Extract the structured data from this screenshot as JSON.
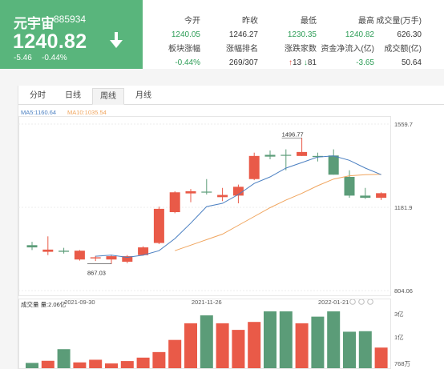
{
  "quote": {
    "name": "元宇宙",
    "code": "885934",
    "price": "1240.82",
    "change": "-5.46",
    "change_pct": "-0.44%",
    "direction_icon": "down-arrow-icon"
  },
  "stats": [
    {
      "label": "今开",
      "value": "1240.05",
      "tone": "down"
    },
    {
      "label": "昨收",
      "value": "1246.27",
      "tone": "dark"
    },
    {
      "label": "最低",
      "value": "1230.35",
      "tone": "down"
    },
    {
      "label": "最高",
      "value": "1240.82",
      "tone": "down"
    },
    {
      "label": "成交量(万手)",
      "value": "626.30",
      "tone": "dark"
    },
    {
      "label": "板块涨幅",
      "value": "-0.44%",
      "tone": "down"
    },
    {
      "label": "涨幅排名",
      "value": "269/307",
      "tone": "dark"
    },
    {
      "label": "涨跌家数",
      "rise": "13",
      "fall": "81",
      "tone": "dark"
    },
    {
      "label": "资金净流入(亿)",
      "value": "-3.65",
      "tone": "down"
    },
    {
      "label": "成交额(亿)",
      "value": "50.64",
      "tone": "dark"
    }
  ],
  "tabs": [
    "分时",
    "日线",
    "周线",
    "月线"
  ],
  "active_tab": 2,
  "colors": {
    "up": "#e95a48",
    "down": "#5b9c78",
    "ma5": "#4a7fc1",
    "ma10": "#f0a55e",
    "header_green": "#59b57c"
  },
  "chart_data": {
    "type": "candlestick",
    "period": "周线",
    "ma_legend": {
      "ma5": "MA5:1160.64",
      "ma10": "MA10:1035.54"
    },
    "price_axis": {
      "min": 804.06,
      "max": 1559.7,
      "mid": 1181.9,
      "labels": [
        "1559.7",
        "1181.9",
        "804.06"
      ]
    },
    "x_labels": [
      {
        "label": "2021-09-30",
        "index": 3
      },
      {
        "label": "2021-11-26",
        "index": 11
      },
      {
        "label": "2022-01-21",
        "index": 19
      }
    ],
    "annotations": {
      "high": "1496.77",
      "low": "867.03"
    },
    "candles": [
      {
        "open": 1010,
        "close": 1000,
        "high": 1025,
        "low": 988
      },
      {
        "open": 980,
        "close": 990,
        "high": 1050,
        "low": 965
      },
      {
        "open": 985,
        "close": 980,
        "high": 998,
        "low": 972
      },
      {
        "open": 945,
        "close": 985,
        "high": 988,
        "low": 940
      },
      {
        "open": 950,
        "close": 955,
        "high": 962,
        "low": 938
      },
      {
        "open": 945,
        "close": 960,
        "high": 966,
        "low": 925
      },
      {
        "open": 935,
        "close": 960,
        "high": 965,
        "low": 928
      },
      {
        "open": 965,
        "close": 1000,
        "high": 1005,
        "low": 962
      },
      {
        "open": 1020,
        "close": 1175,
        "high": 1185,
        "low": 1015
      },
      {
        "open": 1160,
        "close": 1250,
        "high": 1255,
        "low": 1155
      },
      {
        "open": 1245,
        "close": 1255,
        "high": 1265,
        "low": 1205
      },
      {
        "open": 1253,
        "close": 1252,
        "high": 1310,
        "low": 1240
      },
      {
        "open": 1228,
        "close": 1238,
        "high": 1270,
        "low": 1210
      },
      {
        "open": 1235,
        "close": 1275,
        "high": 1285,
        "low": 1200
      },
      {
        "open": 1310,
        "close": 1415,
        "high": 1430,
        "low": 1305
      },
      {
        "open": 1420,
        "close": 1412,
        "high": 1440,
        "low": 1400
      },
      {
        "open": 1420,
        "close": 1418,
        "high": 1445,
        "low": 1350
      },
      {
        "open": 1415,
        "close": 1433,
        "high": 1497,
        "low": 1415
      },
      {
        "open": 1415,
        "close": 1410,
        "high": 1430,
        "low": 1390
      },
      {
        "open": 1417,
        "close": 1330,
        "high": 1445,
        "low": 1330
      },
      {
        "open": 1320,
        "close": 1235,
        "high": 1350,
        "low": 1225
      },
      {
        "open": 1235,
        "close": 1225,
        "high": 1270,
        "low": 1220
      },
      {
        "open": 1225,
        "close": 1246,
        "high": 1250,
        "low": 1215
      }
    ],
    "ma5_values": [
      null,
      null,
      null,
      null,
      960,
      965,
      955,
      965,
      985,
      1040,
      1110,
      1185,
      1200,
      1240,
      1290,
      1320,
      1360,
      1385,
      1410,
      1415,
      1395,
      1360,
      1330
    ],
    "ma10_values": [
      null,
      null,
      null,
      null,
      null,
      null,
      null,
      null,
      null,
      985,
      1010,
      1035,
      1060,
      1100,
      1140,
      1180,
      1215,
      1245,
      1280,
      1310,
      1325,
      1330,
      1332
    ],
    "volume": {
      "label": "成交量 量:2.06亿",
      "axis_labels": [
        "3亿",
        "1亿",
        "768万"
      ],
      "values": [
        0.2,
        0.28,
        0.72,
        0.22,
        0.32,
        0.18,
        0.27,
        0.4,
        0.61,
        1.07,
        1.7,
        2.0,
        1.7,
        1.45,
        1.75,
        2.15,
        2.15,
        1.7,
        1.95,
        2.15,
        1.38,
        1.4,
        0.78
      ]
    }
  }
}
